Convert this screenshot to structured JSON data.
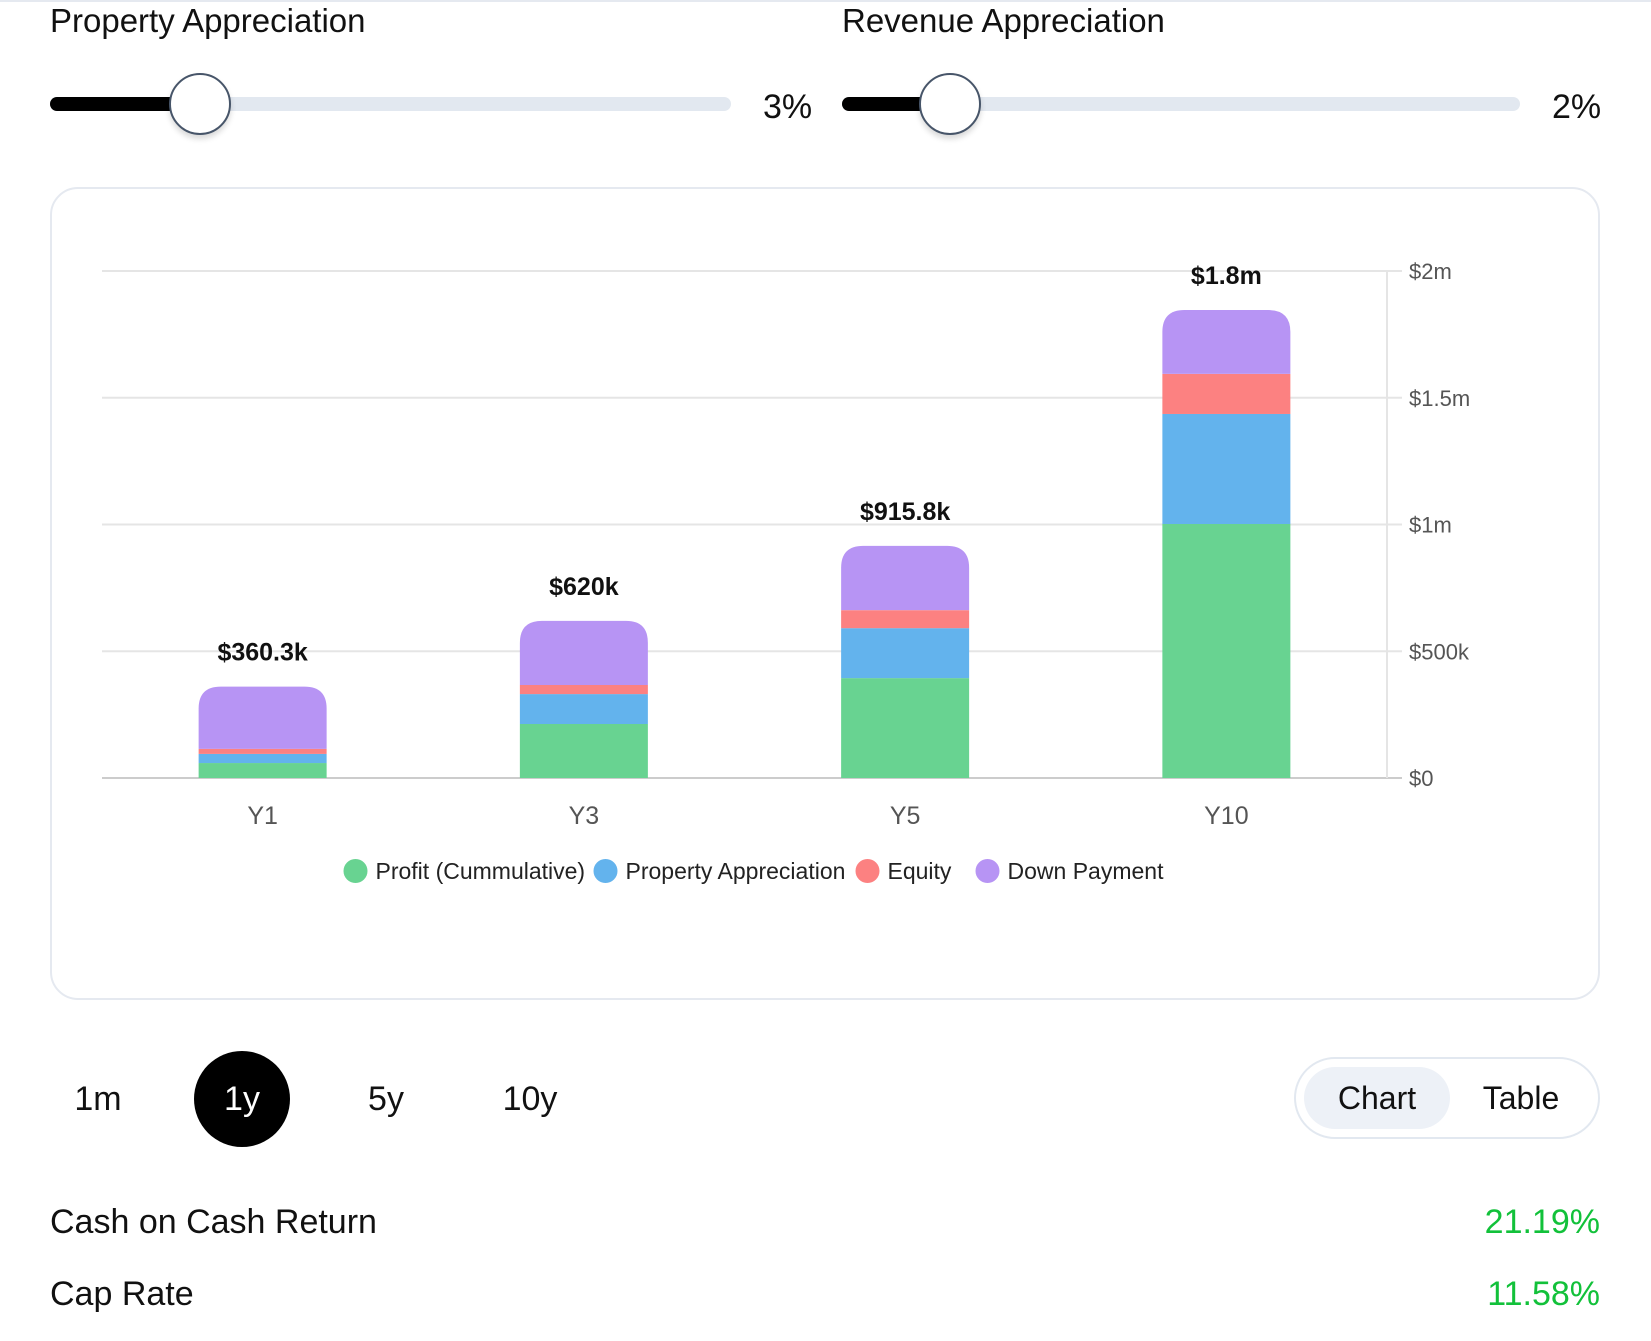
{
  "sliders": [
    {
      "title": "Property Appreciation",
      "value_label": "3%",
      "value": 3,
      "fraction": 0.22
    },
    {
      "title": "Revenue Appreciation",
      "value_label": "2%",
      "value": 2,
      "fraction": 0.16
    }
  ],
  "chart_data": {
    "type": "bar",
    "stacked": true,
    "title": "",
    "xlabel": "",
    "ylabel": "",
    "categories": [
      "Y1",
      "Y3",
      "Y5",
      "Y10"
    ],
    "series": [
      {
        "name": "Profit (Cummulative)",
        "color": "#68d391",
        "values": [
          59000,
          213000,
          394000,
          1002000
        ]
      },
      {
        "name": "Property Appreciation",
        "color": "#63b3ed",
        "values": [
          36000,
          118000,
          197000,
          434000
        ]
      },
      {
        "name": "Equity",
        "color": "#fc8181",
        "values": [
          20000,
          36000,
          71000,
          158000
        ]
      },
      {
        "name": "Down Payment",
        "color": "#b794f4",
        "values": [
          245300,
          253000,
          253800,
          252000
        ]
      }
    ],
    "totals": [
      360300,
      620000,
      915800,
      1846000
    ],
    "total_labels": [
      "$360.3k",
      "$620k",
      "$915.8k",
      "$1.8m"
    ],
    "ylim": [
      0,
      2000000
    ],
    "yticks": [
      0,
      500000,
      1000000,
      1500000,
      2000000
    ],
    "ytick_labels": [
      "$0",
      "$500k",
      "$1m",
      "$1.5m",
      "$2m"
    ],
    "y_axis_side": "right",
    "grid": true,
    "legend_position": "bottom-center"
  },
  "periods": [
    {
      "label": "1m",
      "active": false
    },
    {
      "label": "1y",
      "active": true
    },
    {
      "label": "5y",
      "active": false
    },
    {
      "label": "10y",
      "active": false
    }
  ],
  "view_toggle": {
    "chart_label": "Chart",
    "table_label": "Table",
    "active": "Chart"
  },
  "metrics": [
    {
      "label": "Cash on Cash Return",
      "value": "21.19%"
    },
    {
      "label": "Cap Rate",
      "value": "11.58%"
    }
  ],
  "colors": {
    "positive": "#12c13a",
    "grid": "#e5e5e5",
    "axis_text": "#555555"
  }
}
